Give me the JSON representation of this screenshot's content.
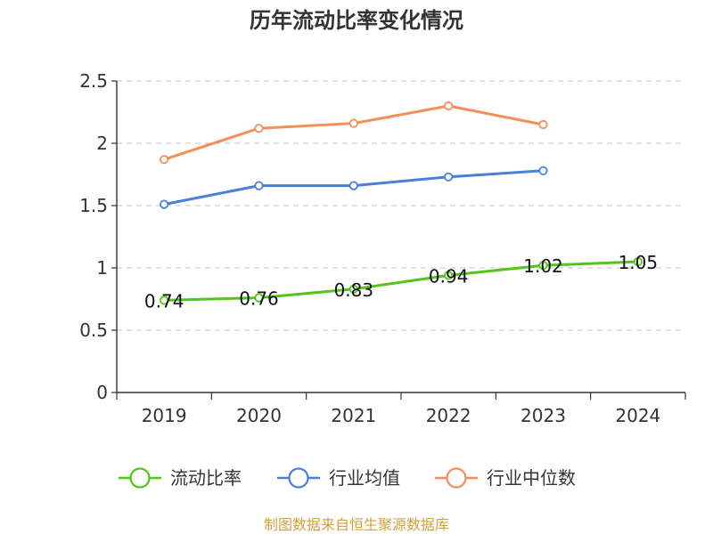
{
  "chart_data": {
    "type": "line",
    "title": "历年流动比率变化情况",
    "xlabel": "",
    "ylabel": "",
    "categories": [
      "2019",
      "2020",
      "2021",
      "2022",
      "2023",
      "2024"
    ],
    "ylim": [
      0,
      2.5
    ],
    "y_ticks": [
      "0",
      "0.5",
      "1",
      "1.5",
      "2",
      "2.5"
    ],
    "y_tick_values": [
      0,
      0.5,
      1,
      1.5,
      2,
      2.5
    ],
    "grid": true,
    "legend_placement": "bottom",
    "series": [
      {
        "name": "流动比率",
        "color": "#52c41a",
        "values": [
          0.74,
          0.76,
          0.83,
          0.94,
          1.02,
          1.05
        ],
        "labels": [
          "0.74",
          "0.76",
          "0.83",
          "0.94",
          "1.02",
          "1.05"
        ]
      },
      {
        "name": "行业均值",
        "color": "#4a7fd8",
        "values": [
          1.51,
          1.66,
          1.66,
          1.73,
          1.78,
          null
        ]
      },
      {
        "name": "行业中位数",
        "color": "#f39058",
        "values": [
          1.87,
          2.12,
          2.16,
          2.3,
          2.15,
          null
        ]
      }
    ]
  },
  "source_note": "制图数据来自恒生聚源数据库"
}
